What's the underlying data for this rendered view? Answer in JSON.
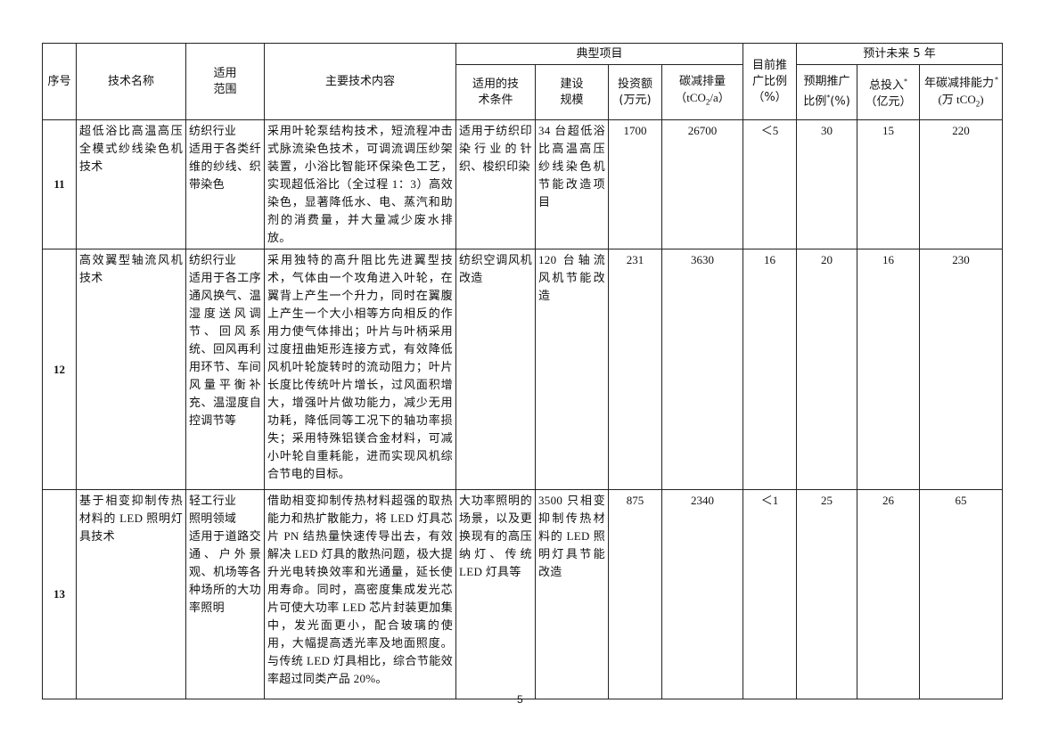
{
  "header": {
    "index": "序号",
    "name": "技术名称",
    "scope": "适用范围",
    "content": "主要技术内容",
    "typical_project": "典型项目",
    "conditions": "适用的技术条件",
    "scale": "建设规模",
    "investment": "投资额",
    "investment_unit": "(万元)",
    "reduction": "碳减排量",
    "reduction_unit_pre": "（tCO",
    "reduction_unit_sub": "2",
    "reduction_unit_post": "/a）",
    "current_ratio": "目前推广比例",
    "current_ratio_unit": "（%）",
    "future": "预计未来 5 年",
    "future_ratio_a": "预期推广",
    "future_ratio_b": "比例",
    "future_ratio_unit": "(%)",
    "total_invest": "总投入",
    "total_invest_unit": "（亿元）",
    "annual_reduction": "年碳减排能力",
    "annual_reduction_unit_pre": "(万 tCO",
    "annual_reduction_unit_sub": "2",
    "annual_reduction_unit_post": ")",
    "asterisk": "*"
  },
  "rows": [
    {
      "index": "11",
      "name": "超低浴比高温高压全模式纱线染色机技术",
      "scope": "纺织行业\n适用于各类纤维的纱线、织带染色",
      "content": "采用叶轮泵结构技术，短流程冲击式脉流染色技术，可调流调压纱架装置，小浴比智能环保染色工艺，实现超低浴比（全过程 1：3）高效染色，显著降低水、电、蒸汽和助剂的消费量，并大量减少废水排放。",
      "conditions": "适用于纺织印染行业的针织、梭织印染",
      "scale": "34 台超低浴比高温高压纱线染色机节能改造项目",
      "investment": "1700",
      "reduction": "26700",
      "current_ratio": "＜5",
      "future_ratio": "30",
      "total_invest": "15",
      "annual_reduction": "220"
    },
    {
      "index": "12",
      "name": "高效翼型轴流风机技术",
      "scope": "纺织行业\n适用于各工序通风换气、温湿度送风调节、回风系统、回风再利用环节、车间风量平衡补充、温湿度自控调节等",
      "content": "采用独特的高升阻比先进翼型技术，气体由一个攻角进入叶轮，在翼背上产生一个升力，同时在翼腹上产生一个大小相等方向相反的作用力使气体排出；叶片与叶柄采用过度扭曲矩形连接方式，有效降低风机叶轮旋转时的流动阻力；叶片长度比传统叶片增长，过风面积增大，增强叶片做功能力，减少无用功耗，降低同等工况下的轴功率损失；采用特殊铝镁合金材料，可减小叶轮自重耗能，进而实现风机综合节电的目标。",
      "conditions": "纺织空调风机改造",
      "scale": "120 台轴流风机节能改造",
      "investment": "231",
      "reduction": "3630",
      "current_ratio": "16",
      "future_ratio": "20",
      "total_invest": "16",
      "annual_reduction": "230"
    },
    {
      "index": "13",
      "name": "基于相变抑制传热材料的 LED 照明灯具技术",
      "scope": "轻工行业\n照明领域\n适用于道路交通、户外景观、机场等各种场所的大功率照明",
      "content": "借助相变抑制传热材料超强的取热能力和热扩散能力，将 LED 灯具芯片 PN 结热量快速传导出去，有效解决 LED 灯具的散热问题，极大提升光电转换效率和光通量，延长使用寿命。同时，高密度集成发光芯片可使大功率 LED 芯片封装更加集中，发光面更小，配合玻璃的使用，大幅提高透光率及地面照度。与传统 LED 灯具相比，综合节能效率超过同类产品 20%。",
      "conditions": "大功率照明的场景，以及更换现有的高压纳灯、传统 LED 灯具等",
      "scale": "3500 只相变抑制传热材料的 LED 照明灯具节能改造",
      "investment": "875",
      "reduction": "2340",
      "current_ratio": "＜1",
      "future_ratio": "25",
      "total_invest": "26",
      "annual_reduction": "65"
    }
  ],
  "page_number": "5"
}
